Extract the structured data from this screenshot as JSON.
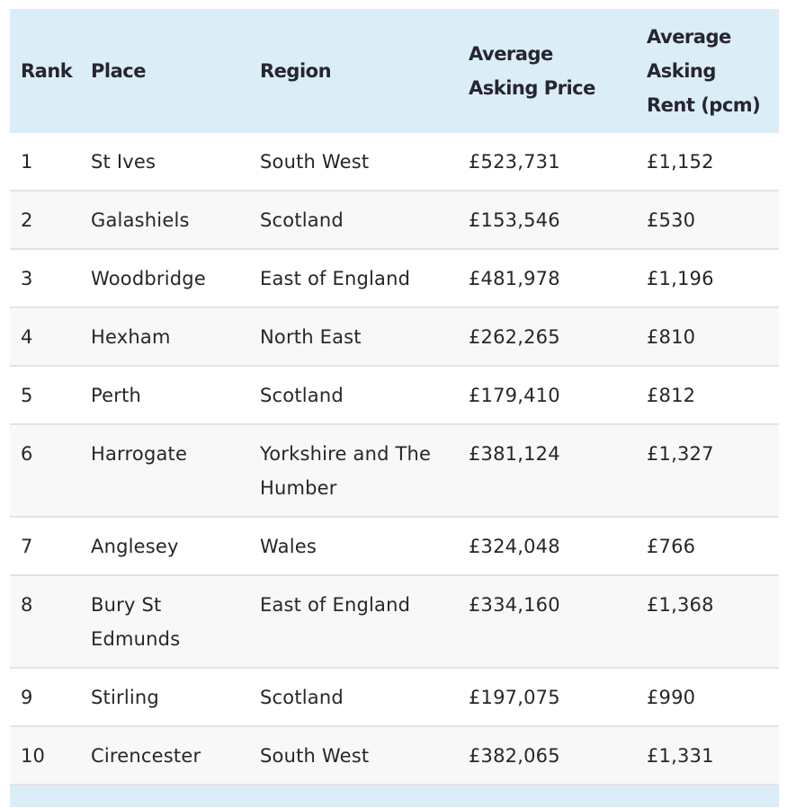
{
  "table": {
    "headers": {
      "rank": "Rank",
      "place": "Place",
      "region": "Region",
      "price": "Average Asking Price",
      "rent": "Average Asking Rent (pcm)"
    },
    "rows": [
      {
        "rank": "1",
        "place": "St Ives",
        "region": "South West",
        "price": "£523,731",
        "rent": "£1,152"
      },
      {
        "rank": "2",
        "place": "Galashiels",
        "region": "Scotland",
        "price": "£153,546",
        "rent": "£530"
      },
      {
        "rank": "3",
        "place": "Woodbridge",
        "region": "East of England",
        "price": "£481,978",
        "rent": "£1,196"
      },
      {
        "rank": "4",
        "place": "Hexham",
        "region": "North East",
        "price": "£262,265",
        "rent": "£810"
      },
      {
        "rank": "5",
        "place": "Perth",
        "region": "Scotland",
        "price": "£179,410",
        "rent": "£812"
      },
      {
        "rank": "6",
        "place": "Harrogate",
        "region": "Yorkshire and The Humber",
        "price": "£381,124",
        "rent": "£1,327"
      },
      {
        "rank": "7",
        "place": "Anglesey",
        "region": "Wales",
        "price": "£324,048",
        "rent": "£766"
      },
      {
        "rank": "8",
        "place": "Bury St Edmunds",
        "region": "East of England",
        "price": "£334,160",
        "rent": "£1,368"
      },
      {
        "rank": "9",
        "place": "Stirling",
        "region": "Scotland",
        "price": "£197,075",
        "rent": "£990"
      },
      {
        "rank": "10",
        "place": "Cirencester",
        "region": "South West",
        "price": "£382,065",
        "rent": "£1,331"
      }
    ]
  },
  "colors": {
    "header_background": "#dbedf7",
    "row_alt_background": "#f8f8f8",
    "row_divider": "#e3e3e6",
    "text": "#26262b"
  }
}
